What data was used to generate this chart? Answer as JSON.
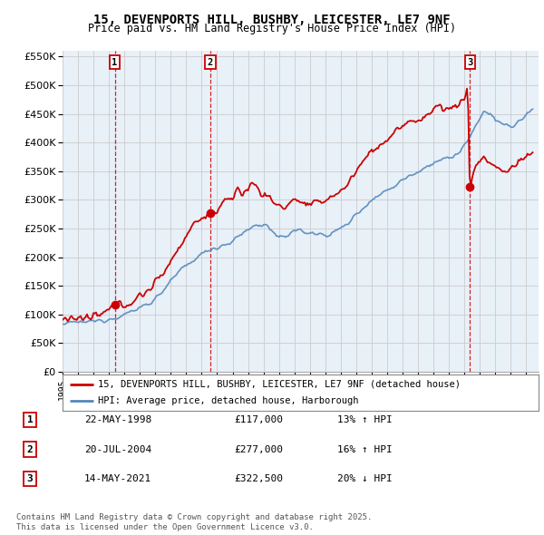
{
  "title_line1": "15, DEVENPORTS HILL, BUSHBY, LEICESTER, LE7 9NF",
  "title_line2": "Price paid vs. HM Land Registry's House Price Index (HPI)",
  "legend_red": "15, DEVENPORTS HILL, BUSHBY, LEICESTER, LE7 9NF (detached house)",
  "legend_blue": "HPI: Average price, detached house, Harborough",
  "transactions": [
    {
      "num": 1,
      "date": "22-MAY-1998",
      "price": 117000,
      "hpi_diff": "13% ↑ HPI",
      "year": 1998.38
    },
    {
      "num": 2,
      "date": "20-JUL-2004",
      "price": 277000,
      "hpi_diff": "16% ↑ HPI",
      "year": 2004.55
    },
    {
      "num": 3,
      "date": "14-MAY-2021",
      "price": 322500,
      "hpi_diff": "20% ↓ HPI",
      "year": 2021.37
    }
  ],
  "red_color": "#cc0000",
  "blue_color": "#5588bb",
  "fill_color": "#ddeeff",
  "ylim": [
    0,
    560000
  ],
  "yticks": [
    0,
    50000,
    100000,
    150000,
    200000,
    250000,
    300000,
    350000,
    400000,
    450000,
    500000,
    550000
  ],
  "xlim_start": 1995.0,
  "xlim_end": 2025.8,
  "footnote": "Contains HM Land Registry data © Crown copyright and database right 2025.\nThis data is licensed under the Open Government Licence v3.0.",
  "bg_color": "#ffffff",
  "grid_color": "#cccccc",
  "chart_bg": "#e8f0f8"
}
